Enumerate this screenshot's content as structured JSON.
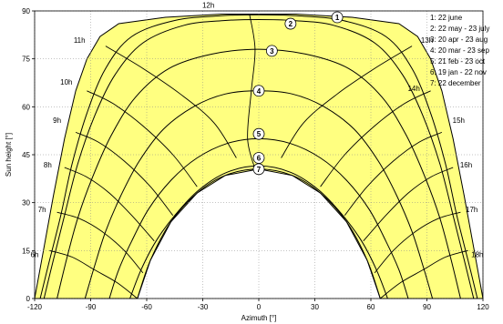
{
  "chart_data": {
    "type": "line",
    "title": "",
    "xlabel": "Azimuth [°]",
    "ylabel": "Sun height [°]",
    "xlim": [
      -120,
      120
    ],
    "ylim": [
      0,
      90
    ],
    "xticks": [
      -120,
      -90,
      -60,
      -30,
      0,
      30,
      60,
      90,
      120
    ],
    "yticks": [
      0,
      15,
      30,
      45,
      60,
      75,
      90
    ],
    "grid": true,
    "legend_position": "top-right",
    "legend": [
      {
        "id": "1",
        "label": "1: 22 june"
      },
      {
        "id": "2",
        "label": "2: 22 may - 23 july"
      },
      {
        "id": "3",
        "label": "3: 20 apr - 23 aug"
      },
      {
        "id": "4",
        "label": "4: 20 mar - 23 sep"
      },
      {
        "id": "5",
        "label": "5: 21 feb - 23 oct"
      },
      {
        "id": "6",
        "label": "6: 19 jan - 22 nov"
      },
      {
        "id": "7",
        "label": "7: 22 december"
      }
    ],
    "fill_color": "#ffff80",
    "line_color": "#000000",
    "envelope": {
      "outer": [
        [
          -120,
          0
        ],
        [
          -115,
          16
        ],
        [
          -110,
          32
        ],
        [
          -104,
          50
        ],
        [
          -98,
          65
        ],
        [
          -92,
          75
        ],
        [
          -85,
          82
        ],
        [
          -75,
          86
        ],
        [
          -50,
          88
        ],
        [
          -20,
          89
        ],
        [
          0,
          89
        ],
        [
          20,
          89
        ],
        [
          50,
          88
        ],
        [
          75,
          86
        ],
        [
          85,
          82
        ],
        [
          92,
          75
        ],
        [
          98,
          65
        ],
        [
          104,
          50
        ],
        [
          110,
          32
        ],
        [
          115,
          16
        ],
        [
          120,
          0
        ]
      ],
      "inner": [
        [
          -65,
          0
        ],
        [
          -58,
          12
        ],
        [
          -47,
          24
        ],
        [
          -33,
          33
        ],
        [
          -18,
          38.5
        ],
        [
          0,
          40.5
        ],
        [
          18,
          38.5
        ],
        [
          33,
          33
        ],
        [
          47,
          24
        ],
        [
          58,
          12
        ],
        [
          65,
          0
        ]
      ]
    },
    "series": [
      {
        "name": "1",
        "points": [
          [
            -117,
            0
          ],
          [
            -112,
            12
          ],
          [
            -106,
            26
          ],
          [
            -100,
            42
          ],
          [
            -92,
            58
          ],
          [
            -82,
            72
          ],
          [
            -68,
            82
          ],
          [
            -45,
            87
          ],
          [
            -20,
            88.5
          ],
          [
            0,
            88.8
          ],
          [
            20,
            88.5
          ],
          [
            45,
            87
          ],
          [
            68,
            82
          ],
          [
            82,
            72
          ],
          [
            92,
            58
          ],
          [
            100,
            42
          ],
          [
            106,
            26
          ],
          [
            112,
            12
          ],
          [
            117,
            0
          ]
        ]
      },
      {
        "name": "2",
        "points": [
          [
            -115,
            0
          ],
          [
            -110,
            12
          ],
          [
            -104,
            26
          ],
          [
            -97,
            42
          ],
          [
            -88,
            57
          ],
          [
            -77,
            70
          ],
          [
            -62,
            80
          ],
          [
            -40,
            85.5
          ],
          [
            -18,
            87
          ],
          [
            0,
            87.3
          ],
          [
            18,
            87
          ],
          [
            40,
            85.5
          ],
          [
            62,
            80
          ],
          [
            77,
            70
          ],
          [
            88,
            57
          ],
          [
            97,
            42
          ],
          [
            104,
            26
          ],
          [
            110,
            12
          ],
          [
            115,
            0
          ]
        ]
      },
      {
        "name": "3",
        "points": [
          [
            -108,
            0
          ],
          [
            -103,
            12
          ],
          [
            -97,
            25
          ],
          [
            -89,
            38
          ],
          [
            -79,
            51
          ],
          [
            -66,
            63
          ],
          [
            -48,
            72
          ],
          [
            -25,
            76.5
          ],
          [
            0,
            78
          ],
          [
            25,
            76.5
          ],
          [
            48,
            72
          ],
          [
            66,
            63
          ],
          [
            79,
            51
          ],
          [
            89,
            38
          ],
          [
            97,
            25
          ],
          [
            103,
            12
          ],
          [
            108,
            0
          ]
        ]
      },
      {
        "name": "4",
        "points": [
          [
            -93,
            0
          ],
          [
            -88,
            10
          ],
          [
            -82,
            21
          ],
          [
            -74,
            32
          ],
          [
            -64,
            43
          ],
          [
            -51,
            53
          ],
          [
            -35,
            60
          ],
          [
            -18,
            64
          ],
          [
            0,
            65
          ],
          [
            18,
            64
          ],
          [
            35,
            60
          ],
          [
            51,
            53
          ],
          [
            64,
            43
          ],
          [
            74,
            32
          ],
          [
            82,
            21
          ],
          [
            88,
            10
          ],
          [
            93,
            0
          ]
        ]
      },
      {
        "name": "5",
        "points": [
          [
            -80,
            0
          ],
          [
            -75,
            9
          ],
          [
            -68,
            18
          ],
          [
            -59,
            28
          ],
          [
            -47,
            37
          ],
          [
            -33,
            44
          ],
          [
            -17,
            48.5
          ],
          [
            0,
            50
          ],
          [
            17,
            48.5
          ],
          [
            33,
            44
          ],
          [
            47,
            37
          ],
          [
            59,
            28
          ],
          [
            68,
            18
          ],
          [
            75,
            9
          ],
          [
            80,
            0
          ]
        ]
      },
      {
        "name": "6",
        "points": [
          [
            -69,
            0
          ],
          [
            -63,
            9
          ],
          [
            -55,
            18
          ],
          [
            -45,
            26
          ],
          [
            -32,
            34
          ],
          [
            -17,
            39.5
          ],
          [
            0,
            41.5
          ],
          [
            17,
            39.5
          ],
          [
            32,
            34
          ],
          [
            45,
            26
          ],
          [
            55,
            18
          ],
          [
            63,
            9
          ],
          [
            69,
            0
          ]
        ]
      },
      {
        "name": "7",
        "points": [
          [
            -65,
            0
          ],
          [
            -58,
            12
          ],
          [
            -47,
            24
          ],
          [
            -33,
            33
          ],
          [
            -18,
            38.5
          ],
          [
            0,
            40.5
          ],
          [
            18,
            38.5
          ],
          [
            33,
            33
          ],
          [
            47,
            24
          ],
          [
            58,
            12
          ],
          [
            65,
            0
          ]
        ]
      }
    ],
    "hour_lines": [
      {
        "label": "6h",
        "points": [
          [
            -112,
            15
          ],
          [
            -100,
            13
          ],
          [
            -88,
            9
          ],
          [
            -76,
            5
          ],
          [
            -65,
            0
          ]
        ]
      },
      {
        "label": "7h",
        "points": [
          [
            -108,
            27
          ],
          [
            -96,
            25
          ],
          [
            -84,
            21
          ],
          [
            -72,
            15
          ],
          [
            -62,
            8
          ]
        ]
      },
      {
        "label": "8h",
        "points": [
          [
            -104,
            41
          ],
          [
            -92,
            38
          ],
          [
            -80,
            33
          ],
          [
            -68,
            26
          ],
          [
            -56,
            18
          ]
        ]
      },
      {
        "label": "9h",
        "points": [
          [
            -98,
            52
          ],
          [
            -86,
            49
          ],
          [
            -72,
            43
          ],
          [
            -58,
            35
          ],
          [
            -46,
            26
          ]
        ]
      },
      {
        "label": "10h",
        "points": [
          [
            -92,
            65
          ],
          [
            -78,
            61
          ],
          [
            -62,
            54
          ],
          [
            -46,
            45
          ],
          [
            -33,
            35
          ]
        ]
      },
      {
        "label": "11h",
        "points": [
          [
            -82,
            79
          ],
          [
            -62,
            72
          ],
          [
            -42,
            64
          ],
          [
            -24,
            55
          ],
          [
            -12,
            44
          ]
        ]
      },
      {
        "label": "12h",
        "points": [
          [
            -5,
            89
          ],
          [
            -2,
            78
          ],
          [
            -4,
            65
          ],
          [
            -6,
            50
          ],
          [
            -2,
            40.5
          ]
        ]
      },
      {
        "label": "13h",
        "points": [
          [
            82,
            79
          ],
          [
            62,
            72
          ],
          [
            42,
            64
          ],
          [
            24,
            55
          ],
          [
            12,
            44
          ]
        ]
      },
      {
        "label": "14h",
        "points": [
          [
            92,
            65
          ],
          [
            78,
            61
          ],
          [
            62,
            54
          ],
          [
            46,
            45
          ],
          [
            33,
            35
          ]
        ]
      },
      {
        "label": "15h",
        "points": [
          [
            98,
            52
          ],
          [
            86,
            49
          ],
          [
            72,
            43
          ],
          [
            58,
            35
          ],
          [
            46,
            26
          ]
        ]
      },
      {
        "label": "16h",
        "points": [
          [
            104,
            41
          ],
          [
            92,
            38
          ],
          [
            80,
            33
          ],
          [
            68,
            26
          ],
          [
            56,
            18
          ]
        ]
      },
      {
        "label": "17h",
        "points": [
          [
            108,
            27
          ],
          [
            96,
            25
          ],
          [
            84,
            21
          ],
          [
            72,
            15
          ],
          [
            62,
            8
          ]
        ]
      },
      {
        "label": "18h",
        "points": [
          [
            112,
            15
          ],
          [
            100,
            13
          ],
          [
            88,
            9
          ],
          [
            76,
            5
          ],
          [
            65,
            0
          ]
        ]
      }
    ],
    "hour_label_positions": [
      {
        "label": "6h",
        "x": -120,
        "y": 13
      },
      {
        "label": "7h",
        "x": -116,
        "y": 27
      },
      {
        "label": "8h",
        "x": -113,
        "y": 41
      },
      {
        "label": "9h",
        "x": -108,
        "y": 55
      },
      {
        "label": "10h",
        "x": -103,
        "y": 67
      },
      {
        "label": "11h",
        "x": -96,
        "y": 80
      },
      {
        "label": "12h",
        "x": -27,
        "y": 91
      },
      {
        "label": "13h",
        "x": 90,
        "y": 80
      },
      {
        "label": "14h",
        "x": 83,
        "y": 65
      },
      {
        "label": "15h",
        "x": 107,
        "y": 55
      },
      {
        "label": "16h",
        "x": 111,
        "y": 41
      },
      {
        "label": "17h",
        "x": 114,
        "y": 27
      },
      {
        "label": "18h",
        "x": 117,
        "y": 13
      }
    ],
    "curve_marker_positions": [
      {
        "id": "1",
        "x": 42,
        "y": 88
      },
      {
        "id": "2",
        "x": 17,
        "y": 86
      },
      {
        "id": "3",
        "x": 7,
        "y": 77.5
      },
      {
        "id": "4",
        "x": 0,
        "y": 65
      },
      {
        "id": "5",
        "x": 0,
        "y": 51.5
      },
      {
        "id": "6",
        "x": 0,
        "y": 44
      },
      {
        "id": "7",
        "x": 0,
        "y": 40.5
      }
    ]
  }
}
